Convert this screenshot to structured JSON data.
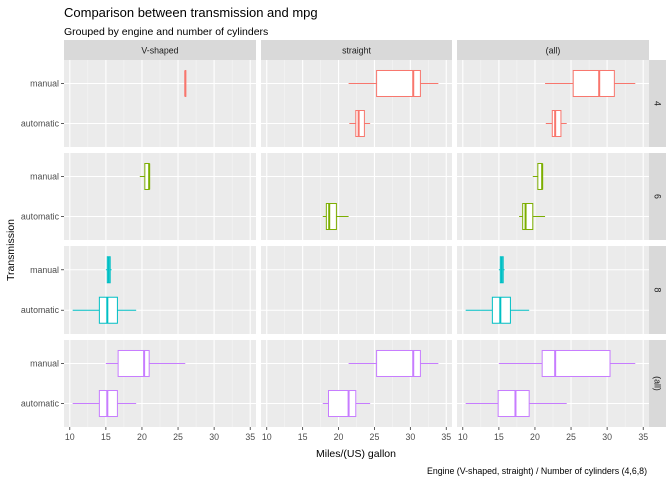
{
  "chart_data": {
    "type": "boxplot",
    "title": "Comparison between transmission and mpg",
    "subtitle": "Grouped by engine and number of cylinders",
    "xlabel": "Miles/(US) gallon",
    "ylabel": "Transmission",
    "caption": "Engine (V-shaped, straight) / Number of cylinders (4,6,8)",
    "xlim": [
      9.2,
      35.8
    ],
    "x_ticks": [
      10,
      15,
      20,
      25,
      30,
      35
    ],
    "categories": [
      "manual",
      "automatic"
    ],
    "columns": [
      "V-shaped",
      "straight",
      "(all)"
    ],
    "rows": [
      "4",
      "6",
      "8",
      "(all)"
    ],
    "colors": {
      "4": "#F8766D",
      "6": "#7CAE00",
      "8": "#00BFC4",
      "(all)": "#C77CFF"
    },
    "panels": [
      {
        "row": "4",
        "col": "V-shaped",
        "boxes": [
          {
            "category": "manual",
            "min": 26.0,
            "q1": 26.0,
            "median": 26.0,
            "q3": 26.0,
            "max": 26.0
          }
        ]
      },
      {
        "row": "4",
        "col": "straight",
        "boxes": [
          {
            "category": "manual",
            "min": 21.4,
            "q1": 25.3,
            "median": 30.4,
            "q3": 31.4,
            "max": 33.9
          },
          {
            "category": "automatic",
            "min": 21.5,
            "q1": 22.4,
            "median": 22.8,
            "q3": 23.6,
            "max": 24.4
          }
        ]
      },
      {
        "row": "4",
        "col": "(all)",
        "boxes": [
          {
            "category": "manual",
            "min": 21.4,
            "q1": 25.3,
            "median": 28.9,
            "q3": 31.0,
            "max": 33.9
          },
          {
            "category": "automatic",
            "min": 21.5,
            "q1": 22.4,
            "median": 22.8,
            "q3": 23.6,
            "max": 24.4
          }
        ]
      },
      {
        "row": "6",
        "col": "V-shaped",
        "boxes": [
          {
            "category": "manual",
            "min": 19.7,
            "q1": 20.4,
            "median": 21.0,
            "q3": 21.0,
            "max": 21.0
          }
        ]
      },
      {
        "row": "6",
        "col": "straight",
        "boxes": [
          {
            "category": "automatic",
            "min": 17.8,
            "q1": 18.3,
            "median": 18.7,
            "q3": 19.7,
            "max": 21.4
          }
        ]
      },
      {
        "row": "6",
        "col": "(all)",
        "boxes": [
          {
            "category": "manual",
            "min": 19.7,
            "q1": 20.4,
            "median": 21.0,
            "q3": 21.0,
            "max": 21.0
          },
          {
            "category": "automatic",
            "min": 17.8,
            "q1": 18.3,
            "median": 18.7,
            "q3": 19.7,
            "max": 21.4
          }
        ]
      },
      {
        "row": "8",
        "col": "V-shaped",
        "boxes": [
          {
            "category": "manual",
            "min": 15.0,
            "q1": 15.2,
            "median": 15.4,
            "q3": 15.6,
            "max": 15.8
          },
          {
            "category": "automatic",
            "min": 10.4,
            "q1": 14.1,
            "median": 15.2,
            "q3": 16.6,
            "max": 19.2
          }
        ]
      },
      {
        "row": "8",
        "col": "(all)",
        "boxes": [
          {
            "category": "manual",
            "min": 15.0,
            "q1": 15.2,
            "median": 15.4,
            "q3": 15.6,
            "max": 15.8
          },
          {
            "category": "automatic",
            "min": 10.4,
            "q1": 14.1,
            "median": 15.2,
            "q3": 16.6,
            "max": 19.2
          }
        ]
      },
      {
        "row": "(all)",
        "col": "V-shaped",
        "boxes": [
          {
            "category": "manual",
            "min": 15.0,
            "q1": 16.7,
            "median": 20.3,
            "q3": 21.0,
            "max": 26.0
          },
          {
            "category": "automatic",
            "min": 10.4,
            "q1": 14.1,
            "median": 15.2,
            "q3": 16.6,
            "max": 19.2
          }
        ]
      },
      {
        "row": "(all)",
        "col": "straight",
        "boxes": [
          {
            "category": "manual",
            "min": 21.4,
            "q1": 25.3,
            "median": 30.4,
            "q3": 31.4,
            "max": 33.9
          },
          {
            "category": "automatic",
            "min": 17.8,
            "q1": 18.6,
            "median": 21.4,
            "q3": 22.4,
            "max": 24.4
          }
        ]
      },
      {
        "row": "(all)",
        "col": "(all)",
        "boxes": [
          {
            "category": "manual",
            "min": 15.0,
            "q1": 21.0,
            "median": 22.8,
            "q3": 30.4,
            "max": 33.9
          },
          {
            "category": "automatic",
            "min": 10.4,
            "q1": 14.9,
            "median": 17.3,
            "q3": 19.2,
            "max": 24.4
          }
        ]
      }
    ]
  }
}
